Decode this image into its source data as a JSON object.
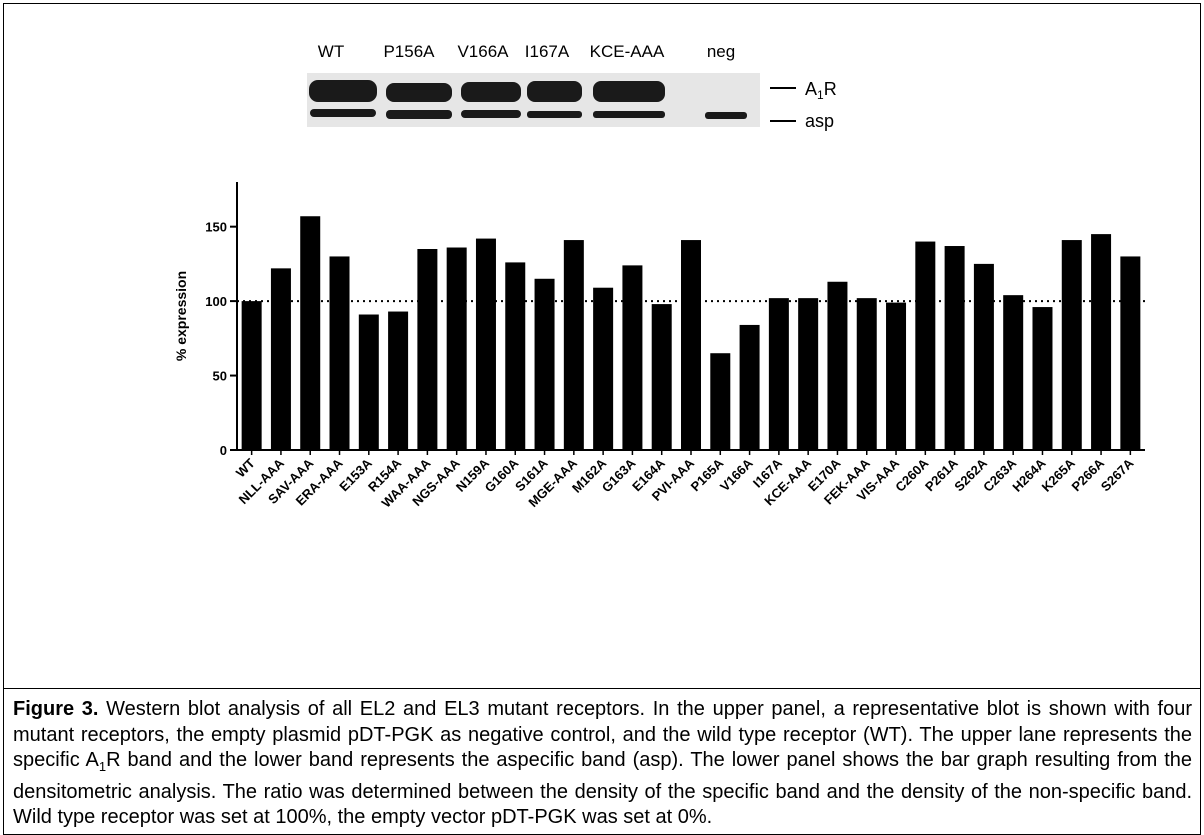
{
  "blot": {
    "lanes": [
      "WT",
      "P156A",
      "V166A",
      "I167A",
      "KCE-AAA",
      "neg"
    ],
    "band_upper": {
      "main": "A",
      "sub": "1",
      "tail": "R"
    },
    "band_lower": "asp"
  },
  "chart_data": {
    "type": "bar",
    "y_label": "% expression",
    "categories": [
      "WT",
      "NLL-AAA",
      "SAV-AAA",
      "ERA-AAA",
      "E153A",
      "R154A",
      "WAA-AAA",
      "NGS-AAA",
      "N159A",
      "G160A",
      "S161A",
      "MGE-AAA",
      "M162A",
      "G163A",
      "E164A",
      "PVI-AAA",
      "P165A",
      "V166A",
      "I167A",
      "KCE-AAA",
      "E170A",
      "FEK-AAA",
      "VIS-AAA",
      "C260A",
      "P261A",
      "S262A",
      "C263A",
      "H264A",
      "K265A",
      "P266A",
      "S267A"
    ],
    "values": [
      100,
      122,
      157,
      130,
      91,
      93,
      135,
      136,
      142,
      126,
      115,
      141,
      109,
      124,
      98,
      141,
      65,
      84,
      102,
      102,
      113,
      102,
      99,
      140,
      137,
      125,
      104,
      96,
      141,
      145,
      130
    ],
    "color": "#000000",
    "ylim": [
      0,
      180
    ],
    "yticks": [
      0,
      50,
      100,
      150
    ],
    "reference_line": 100
  },
  "caption": {
    "label": "Figure 3.",
    "text_1": "Western blot analysis of all EL2 and EL3 mutant receptors. In the upper panel, a representative blot is shown with four mutant receptors, the empty plasmid pDT-PGK as negative control, and the wild type receptor (WT). The upper lane represents the specific A",
    "sub": "1",
    "text_2": "R band and the lower band represents the aspecific band (asp). The lower panel shows the bar graph resulting from the densitometric analysis. The ratio was determined between the density of the specific band and the density of the non-specific band. Wild type receptor was set at 100%, the empty vector pDT-PGK was set at 0%."
  }
}
